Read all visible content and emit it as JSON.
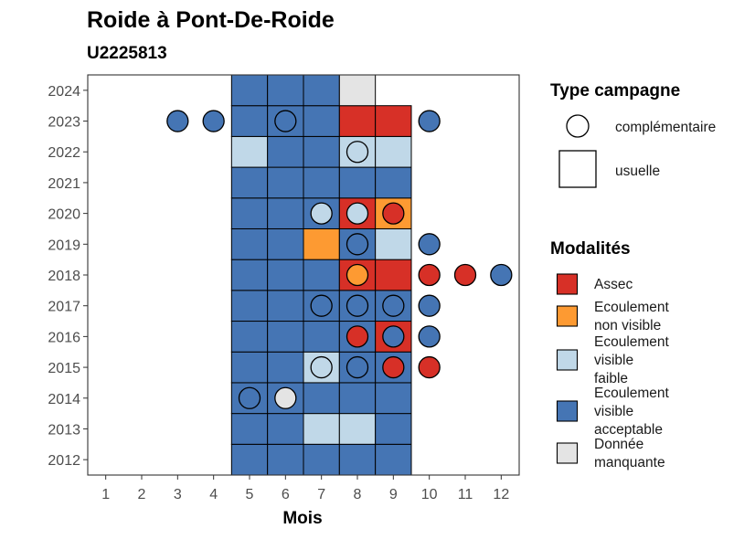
{
  "title": "Roide à Pont-De-Roide",
  "subtitle": "U2225813",
  "chart_data": {
    "type": "heatmap",
    "title": "Roide à Pont-De-Roide",
    "subtitle": "U2225813",
    "xlabel": "Mois",
    "ylabel": "",
    "x_ticks": [
      "1",
      "2",
      "3",
      "4",
      "5",
      "6",
      "7",
      "8",
      "9",
      "10",
      "11",
      "12"
    ],
    "y_ticks": [
      "2012",
      "2013",
      "2014",
      "2015",
      "2016",
      "2017",
      "2018",
      "2019",
      "2020",
      "2021",
      "2022",
      "2023",
      "2024"
    ],
    "xlim": [
      0.5,
      12.5
    ],
    "ylim": [
      2011.5,
      2024.5
    ],
    "grid": false,
    "colors": {
      "Assec": "#d73027",
      "Ecoulement non visible": "#fd9a32",
      "Ecoulement visible faible": "#c0d8e8",
      "Ecoulement visible acceptable": "#4575b4",
      "Donnée manquante": "#e4e4e4"
    },
    "usuelle": [
      {
        "year": 2012,
        "month": 5,
        "modalite": "Ecoulement visible acceptable"
      },
      {
        "year": 2012,
        "month": 6,
        "modalite": "Ecoulement visible acceptable"
      },
      {
        "year": 2012,
        "month": 7,
        "modalite": "Ecoulement visible acceptable"
      },
      {
        "year": 2012,
        "month": 8,
        "modalite": "Ecoulement visible acceptable"
      },
      {
        "year": 2012,
        "month": 9,
        "modalite": "Ecoulement visible acceptable"
      },
      {
        "year": 2013,
        "month": 5,
        "modalite": "Ecoulement visible acceptable"
      },
      {
        "year": 2013,
        "month": 6,
        "modalite": "Ecoulement visible acceptable"
      },
      {
        "year": 2013,
        "month": 7,
        "modalite": "Ecoulement visible faible"
      },
      {
        "year": 2013,
        "month": 8,
        "modalite": "Ecoulement visible faible"
      },
      {
        "year": 2013,
        "month": 9,
        "modalite": "Ecoulement visible acceptable"
      },
      {
        "year": 2014,
        "month": 5,
        "modalite": "Ecoulement visible acceptable"
      },
      {
        "year": 2014,
        "month": 6,
        "modalite": "Ecoulement visible acceptable"
      },
      {
        "year": 2014,
        "month": 7,
        "modalite": "Ecoulement visible acceptable"
      },
      {
        "year": 2014,
        "month": 8,
        "modalite": "Ecoulement visible acceptable"
      },
      {
        "year": 2014,
        "month": 9,
        "modalite": "Ecoulement visible acceptable"
      },
      {
        "year": 2015,
        "month": 5,
        "modalite": "Ecoulement visible acceptable"
      },
      {
        "year": 2015,
        "month": 6,
        "modalite": "Ecoulement visible acceptable"
      },
      {
        "year": 2015,
        "month": 7,
        "modalite": "Ecoulement visible faible"
      },
      {
        "year": 2015,
        "month": 8,
        "modalite": "Ecoulement visible acceptable"
      },
      {
        "year": 2015,
        "month": 9,
        "modalite": "Ecoulement visible acceptable"
      },
      {
        "year": 2016,
        "month": 5,
        "modalite": "Ecoulement visible acceptable"
      },
      {
        "year": 2016,
        "month": 6,
        "modalite": "Ecoulement visible acceptable"
      },
      {
        "year": 2016,
        "month": 7,
        "modalite": "Ecoulement visible acceptable"
      },
      {
        "year": 2016,
        "month": 8,
        "modalite": "Ecoulement visible acceptable"
      },
      {
        "year": 2016,
        "month": 9,
        "modalite": "Assec"
      },
      {
        "year": 2017,
        "month": 5,
        "modalite": "Ecoulement visible acceptable"
      },
      {
        "year": 2017,
        "month": 6,
        "modalite": "Ecoulement visible acceptable"
      },
      {
        "year": 2017,
        "month": 7,
        "modalite": "Ecoulement visible acceptable"
      },
      {
        "year": 2017,
        "month": 8,
        "modalite": "Ecoulement visible acceptable"
      },
      {
        "year": 2017,
        "month": 9,
        "modalite": "Ecoulement visible acceptable"
      },
      {
        "year": 2018,
        "month": 5,
        "modalite": "Ecoulement visible acceptable"
      },
      {
        "year": 2018,
        "month": 6,
        "modalite": "Ecoulement visible acceptable"
      },
      {
        "year": 2018,
        "month": 7,
        "modalite": "Ecoulement visible acceptable"
      },
      {
        "year": 2018,
        "month": 8,
        "modalite": "Assec"
      },
      {
        "year": 2018,
        "month": 9,
        "modalite": "Assec"
      },
      {
        "year": 2019,
        "month": 5,
        "modalite": "Ecoulement visible acceptable"
      },
      {
        "year": 2019,
        "month": 6,
        "modalite": "Ecoulement visible acceptable"
      },
      {
        "year": 2019,
        "month": 7,
        "modalite": "Ecoulement non visible"
      },
      {
        "year": 2019,
        "month": 8,
        "modalite": "Ecoulement visible acceptable"
      },
      {
        "year": 2019,
        "month": 9,
        "modalite": "Ecoulement visible faible"
      },
      {
        "year": 2020,
        "month": 5,
        "modalite": "Ecoulement visible acceptable"
      },
      {
        "year": 2020,
        "month": 6,
        "modalite": "Ecoulement visible acceptable"
      },
      {
        "year": 2020,
        "month": 7,
        "modalite": "Ecoulement visible acceptable"
      },
      {
        "year": 2020,
        "month": 8,
        "modalite": "Assec"
      },
      {
        "year": 2020,
        "month": 9,
        "modalite": "Ecoulement non visible"
      },
      {
        "year": 2021,
        "month": 5,
        "modalite": "Ecoulement visible acceptable"
      },
      {
        "year": 2021,
        "month": 6,
        "modalite": "Ecoulement visible acceptable"
      },
      {
        "year": 2021,
        "month": 7,
        "modalite": "Ecoulement visible acceptable"
      },
      {
        "year": 2021,
        "month": 8,
        "modalite": "Ecoulement visible acceptable"
      },
      {
        "year": 2021,
        "month": 9,
        "modalite": "Ecoulement visible acceptable"
      },
      {
        "year": 2022,
        "month": 5,
        "modalite": "Ecoulement visible faible"
      },
      {
        "year": 2022,
        "month": 6,
        "modalite": "Ecoulement visible acceptable"
      },
      {
        "year": 2022,
        "month": 7,
        "modalite": "Ecoulement visible acceptable"
      },
      {
        "year": 2022,
        "month": 8,
        "modalite": "Ecoulement visible faible"
      },
      {
        "year": 2022,
        "month": 9,
        "modalite": "Ecoulement visible faible"
      },
      {
        "year": 2023,
        "month": 5,
        "modalite": "Ecoulement visible acceptable"
      },
      {
        "year": 2023,
        "month": 6,
        "modalite": "Ecoulement visible acceptable"
      },
      {
        "year": 2023,
        "month": 7,
        "modalite": "Ecoulement visible acceptable"
      },
      {
        "year": 2023,
        "month": 8,
        "modalite": "Assec"
      },
      {
        "year": 2023,
        "month": 9,
        "modalite": "Assec"
      },
      {
        "year": 2024,
        "month": 5,
        "modalite": "Ecoulement visible acceptable"
      },
      {
        "year": 2024,
        "month": 6,
        "modalite": "Ecoulement visible acceptable"
      },
      {
        "year": 2024,
        "month": 7,
        "modalite": "Ecoulement visible acceptable"
      },
      {
        "year": 2024,
        "month": 8,
        "modalite": "Donnée manquante"
      }
    ],
    "complementaire": [
      {
        "year": 2023,
        "month": 3,
        "modalite": "Ecoulement visible acceptable"
      },
      {
        "year": 2023,
        "month": 4,
        "modalite": "Ecoulement visible acceptable"
      },
      {
        "year": 2023,
        "month": 6,
        "modalite": "Ecoulement visible acceptable"
      },
      {
        "year": 2023,
        "month": 10,
        "modalite": "Ecoulement visible acceptable"
      },
      {
        "year": 2022,
        "month": 8,
        "modalite": "Ecoulement visible faible"
      },
      {
        "year": 2020,
        "month": 7,
        "modalite": "Ecoulement visible faible"
      },
      {
        "year": 2020,
        "month": 8,
        "modalite": "Ecoulement visible faible"
      },
      {
        "year": 2020,
        "month": 9,
        "modalite": "Assec"
      },
      {
        "year": 2019,
        "month": 8,
        "modalite": "Ecoulement visible acceptable"
      },
      {
        "year": 2019,
        "month": 10,
        "modalite": "Ecoulement visible acceptable"
      },
      {
        "year": 2018,
        "month": 8,
        "modalite": "Ecoulement non visible"
      },
      {
        "year": 2018,
        "month": 10,
        "modalite": "Assec"
      },
      {
        "year": 2018,
        "month": 11,
        "modalite": "Assec"
      },
      {
        "year": 2018,
        "month": 12,
        "modalite": "Ecoulement visible acceptable"
      },
      {
        "year": 2017,
        "month": 7,
        "modalite": "Ecoulement visible acceptable"
      },
      {
        "year": 2017,
        "month": 8,
        "modalite": "Ecoulement visible acceptable"
      },
      {
        "year": 2017,
        "month": 9,
        "modalite": "Ecoulement visible acceptable"
      },
      {
        "year": 2017,
        "month": 10,
        "modalite": "Ecoulement visible acceptable"
      },
      {
        "year": 2016,
        "month": 8,
        "modalite": "Assec"
      },
      {
        "year": 2016,
        "month": 9,
        "modalite": "Ecoulement visible acceptable"
      },
      {
        "year": 2016,
        "month": 10,
        "modalite": "Ecoulement visible acceptable"
      },
      {
        "year": 2015,
        "month": 7,
        "modalite": "Ecoulement visible faible"
      },
      {
        "year": 2015,
        "month": 8,
        "modalite": "Ecoulement visible acceptable"
      },
      {
        "year": 2015,
        "month": 9,
        "modalite": "Assec"
      },
      {
        "year": 2015,
        "month": 10,
        "modalite": "Assec"
      },
      {
        "year": 2014,
        "month": 5,
        "modalite": "Ecoulement visible acceptable"
      },
      {
        "year": 2014,
        "month": 6,
        "modalite": "Donnée manquante"
      }
    ]
  },
  "legend": {
    "campagne_title": "Type campagne",
    "campagne_items": [
      {
        "label": "complémentaire",
        "shape": "circle"
      },
      {
        "label": "usuelle",
        "shape": "square"
      }
    ],
    "modalites_title": "Modalités",
    "modalites_items": [
      {
        "lines": [
          "Assec"
        ],
        "color": "#d73027"
      },
      {
        "lines": [
          "Ecoulement",
          "non visible"
        ],
        "color": "#fd9a32"
      },
      {
        "lines": [
          "Ecoulement",
          "visible",
          "faible"
        ],
        "color": "#c0d8e8"
      },
      {
        "lines": [
          "Ecoulement",
          "visible",
          "acceptable"
        ],
        "color": "#4575b4"
      },
      {
        "lines": [
          "Donnée",
          "manquante"
        ],
        "color": "#e4e4e4"
      }
    ]
  }
}
